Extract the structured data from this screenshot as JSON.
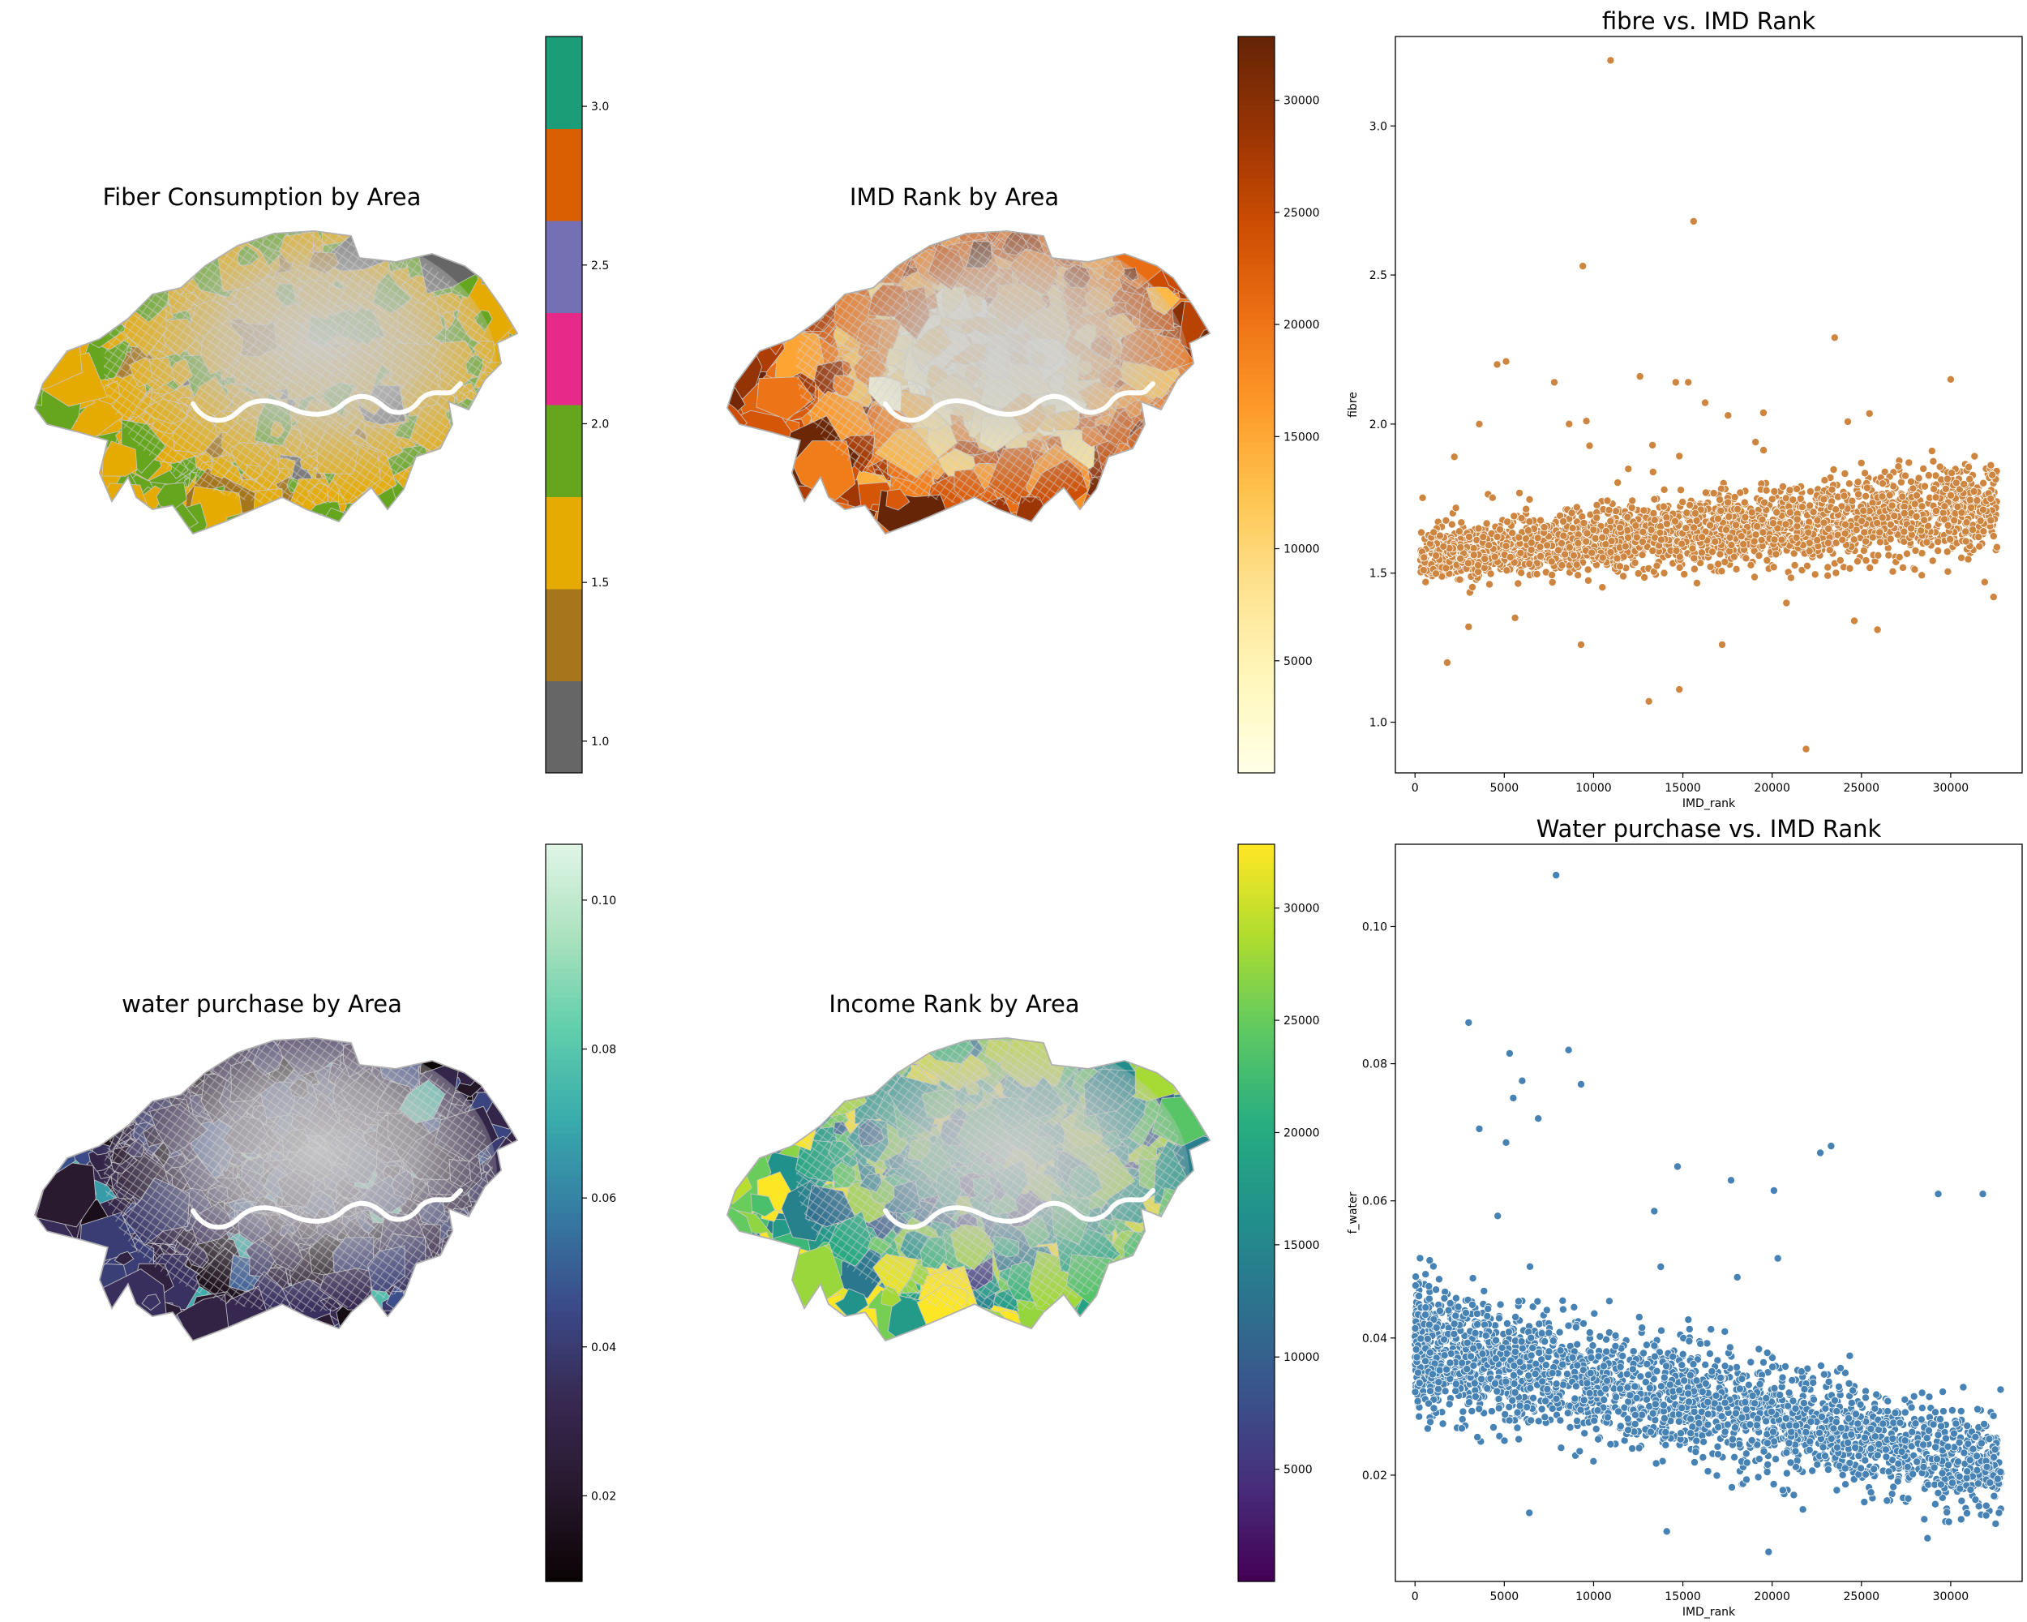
{
  "chart_data": [
    {
      "type": "choropleth",
      "title": "Fiber Consumption by Area",
      "colorbar": {
        "kind": "categorical",
        "range": [
          0.9,
          3.22
        ],
        "ticks": [
          1.0,
          1.5,
          2.0,
          2.5,
          3.0
        ],
        "tick_labels": [
          "1.0",
          "1.5",
          "2.0",
          "2.5",
          "3.0"
        ],
        "colors": [
          "#666666",
          "#a6761d",
          "#e6ab02",
          "#66a61e",
          "#e7298a",
          "#7570b3",
          "#d95f02",
          "#1b9e77"
        ]
      },
      "dominant_color": "#e6ab02",
      "secondary_color": "#66a61e"
    },
    {
      "type": "choropleth",
      "title": "IMD Rank by Area",
      "colorbar": {
        "kind": "continuous",
        "colormap": "YlOrBr",
        "range": [
          0,
          32844
        ],
        "ticks": [
          5000,
          10000,
          15000,
          20000,
          25000,
          30000
        ],
        "tick_labels": [
          "5000",
          "10000",
          "15000",
          "20000",
          "25000",
          "30000"
        ],
        "colors": [
          "#ffffe5",
          "#fff7bc",
          "#fee391",
          "#fec44f",
          "#fe9929",
          "#ec7014",
          "#cc4c02",
          "#993404",
          "#662506"
        ]
      }
    },
    {
      "type": "scatter",
      "title": "fibre vs. IMD Rank",
      "xlabel": "IMD_rank",
      "ylabel": "fibre",
      "xlim": [
        -1100,
        34000
      ],
      "ylim": [
        0.83,
        3.3
      ],
      "xticks": [
        0,
        5000,
        10000,
        15000,
        20000,
        25000,
        30000
      ],
      "xtick_labels": [
        "0",
        "5000",
        "10000",
        "15000",
        "20000",
        "25000",
        "30000"
      ],
      "yticks": [
        1.0,
        1.5,
        2.0,
        2.5,
        3.0
      ],
      "ytick_labels": [
        "1.0",
        "1.5",
        "2.0",
        "2.5",
        "3.0"
      ],
      "color": "#cd853f",
      "trend": {
        "x": [
          0,
          32844
        ],
        "y": [
          1.56,
          1.72
        ]
      },
      "outliers": [
        {
          "x": 10950,
          "y": 3.22
        },
        {
          "x": 15600,
          "y": 2.68
        },
        {
          "x": 9400,
          "y": 2.53
        },
        {
          "x": 23500,
          "y": 2.29
        },
        {
          "x": 5100,
          "y": 2.21
        },
        {
          "x": 4600,
          "y": 2.2
        },
        {
          "x": 12600,
          "y": 2.16
        },
        {
          "x": 15300,
          "y": 2.14
        },
        {
          "x": 7800,
          "y": 2.14
        },
        {
          "x": 30000,
          "y": 2.15
        },
        {
          "x": 14600,
          "y": 2.14
        },
        {
          "x": 13100,
          "y": 1.07
        },
        {
          "x": 14800,
          "y": 1.11
        },
        {
          "x": 21900,
          "y": 0.91
        },
        {
          "x": 1800,
          "y": 1.2
        },
        {
          "x": 9300,
          "y": 1.26
        },
        {
          "x": 17200,
          "y": 1.26
        },
        {
          "x": 25900,
          "y": 1.31
        },
        {
          "x": 3600,
          "y": 2.0
        },
        {
          "x": 9600,
          "y": 2.01
        },
        {
          "x": 2200,
          "y": 1.89
        },
        {
          "x": 32400,
          "y": 1.42
        },
        {
          "x": 31900,
          "y": 1.47
        },
        {
          "x": 24600,
          "y": 1.34
        },
        {
          "x": 3000,
          "y": 1.32
        },
        {
          "x": 5600,
          "y": 1.35
        },
        {
          "x": 20800,
          "y": 1.4
        }
      ]
    },
    {
      "type": "choropleth",
      "title": "water purchase by Area",
      "colorbar": {
        "kind": "continuous",
        "colormap": "mako",
        "range": [
          0.0085,
          0.1075
        ],
        "ticks": [
          0.02,
          0.04,
          0.06,
          0.08,
          0.1
        ],
        "tick_labels": [
          "0.02",
          "0.04",
          "0.06",
          "0.08",
          "0.10"
        ],
        "colors": [
          "#0b0405",
          "#28192e",
          "#382a54",
          "#3b4b8a",
          "#357ba2",
          "#38aaac",
          "#60ceac",
          "#a9e1be",
          "#def5e5"
        ]
      }
    },
    {
      "type": "choropleth",
      "title": "Income Rank by Area",
      "colorbar": {
        "kind": "continuous",
        "colormap": "viridis",
        "range": [
          0,
          32844
        ],
        "ticks": [
          5000,
          10000,
          15000,
          20000,
          25000,
          30000
        ],
        "tick_labels": [
          "5000",
          "10000",
          "15000",
          "20000",
          "25000",
          "30000"
        ],
        "colors": [
          "#440154",
          "#472d7b",
          "#3b528b",
          "#2c728e",
          "#21918c",
          "#28ae80",
          "#5ec962",
          "#addc30",
          "#fde725"
        ]
      }
    },
    {
      "type": "scatter",
      "title": "Water purchase vs. IMD Rank",
      "xlabel": "IMD_rank",
      "ylabel": "f_water",
      "xlim": [
        -1100,
        34000
      ],
      "ylim": [
        0.0045,
        0.112
      ],
      "xticks": [
        0,
        5000,
        10000,
        15000,
        20000,
        25000,
        30000
      ],
      "xtick_labels": [
        "0",
        "5000",
        "10000",
        "15000",
        "20000",
        "25000",
        "30000"
      ],
      "yticks": [
        0.02,
        0.04,
        0.06,
        0.08,
        0.1
      ],
      "ytick_labels": [
        "0.02",
        "0.04",
        "0.06",
        "0.08",
        "0.10"
      ],
      "color": "#4682b4",
      "trend": {
        "x": [
          0,
          32844
        ],
        "y": [
          0.039,
          0.021
        ]
      },
      "outliers": [
        {
          "x": 7900,
          "y": 0.1075
        },
        {
          "x": 3000,
          "y": 0.086
        },
        {
          "x": 8600,
          "y": 0.082
        },
        {
          "x": 5300,
          "y": 0.0815
        },
        {
          "x": 9300,
          "y": 0.077
        },
        {
          "x": 6000,
          "y": 0.0775
        },
        {
          "x": 5500,
          "y": 0.075
        },
        {
          "x": 6900,
          "y": 0.072
        },
        {
          "x": 3600,
          "y": 0.0705
        },
        {
          "x": 23300,
          "y": 0.068
        },
        {
          "x": 22700,
          "y": 0.067
        },
        {
          "x": 5100,
          "y": 0.0685
        },
        {
          "x": 14700,
          "y": 0.065
        },
        {
          "x": 29300,
          "y": 0.061
        },
        {
          "x": 31800,
          "y": 0.061
        },
        {
          "x": 20100,
          "y": 0.0615
        },
        {
          "x": 17700,
          "y": 0.063
        },
        {
          "x": 13400,
          "y": 0.0585
        },
        {
          "x": 20600,
          "y": 0.0178
        },
        {
          "x": 19800,
          "y": 0.0088
        },
        {
          "x": 14100,
          "y": 0.0118
        },
        {
          "x": 6400,
          "y": 0.0145
        },
        {
          "x": 28700,
          "y": 0.0108
        },
        {
          "x": 32700,
          "y": 0.0145
        }
      ]
    }
  ]
}
